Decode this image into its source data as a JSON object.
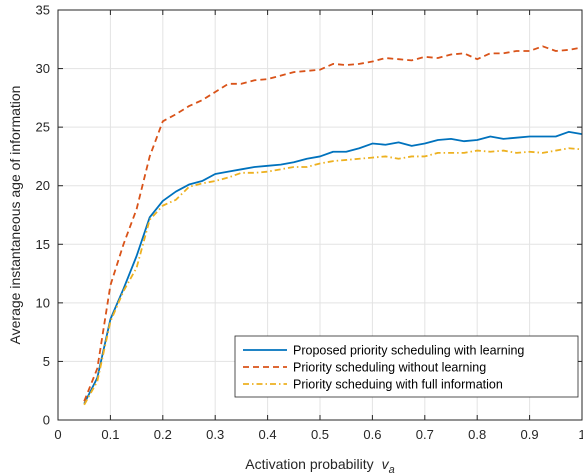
{
  "chart_data": {
    "type": "line",
    "title": "",
    "xlabel": "Activation probability",
    "xlabel_var": "v",
    "xlabel_sub": "a",
    "ylabel": "Average instantaneous age of information",
    "xlim": [
      0,
      1
    ],
    "ylim": [
      0,
      35
    ],
    "xticks": [
      0,
      0.1,
      0.2,
      0.3,
      0.4,
      0.5,
      0.6,
      0.7,
      0.8,
      0.9,
      1
    ],
    "xtick_labels": [
      "0",
      "0.1",
      "0.2",
      "0.3",
      "0.4",
      "0.5",
      "0.6",
      "0.7",
      "0.8",
      "0.9",
      "1"
    ],
    "yticks": [
      0,
      5,
      10,
      15,
      20,
      25,
      30,
      35
    ],
    "ytick_labels": [
      "0",
      "5",
      "10",
      "15",
      "20",
      "25",
      "30",
      "35"
    ],
    "grid": true,
    "legend_position": "bottom-right",
    "x": [
      0.05,
      0.075,
      0.1,
      0.125,
      0.15,
      0.175,
      0.2,
      0.225,
      0.25,
      0.275,
      0.3,
      0.325,
      0.35,
      0.375,
      0.4,
      0.425,
      0.45,
      0.475,
      0.5,
      0.525,
      0.55,
      0.575,
      0.6,
      0.625,
      0.65,
      0.675,
      0.7,
      0.725,
      0.75,
      0.775,
      0.8,
      0.825,
      0.85,
      0.875,
      0.9,
      0.925,
      0.95,
      0.975,
      1.0
    ],
    "series": [
      {
        "name": "Proposed priority scheduling with learning",
        "color": "#0072BD",
        "dash": "solid",
        "values": [
          1.4,
          3.6,
          8.6,
          11.2,
          14.0,
          17.3,
          18.7,
          19.5,
          20.1,
          20.4,
          21.0,
          21.2,
          21.4,
          21.6,
          21.7,
          21.8,
          22.0,
          22.3,
          22.5,
          22.9,
          22.9,
          23.2,
          23.6,
          23.5,
          23.7,
          23.4,
          23.6,
          23.9,
          24.0,
          23.8,
          23.9,
          24.2,
          24.0,
          24.1,
          24.2,
          24.2,
          24.2,
          24.6,
          24.4
        ]
      },
      {
        "name": "Priority scheduling without learning",
        "color": "#D95319",
        "dash": "dashed",
        "values": [
          1.6,
          4.4,
          11.5,
          15.0,
          18.0,
          22.5,
          25.5,
          26.1,
          26.8,
          27.3,
          28.0,
          28.7,
          28.7,
          29.0,
          29.1,
          29.4,
          29.7,
          29.8,
          29.9,
          30.4,
          30.3,
          30.4,
          30.6,
          30.9,
          30.8,
          30.7,
          31.0,
          30.9,
          31.2,
          31.3,
          30.8,
          31.3,
          31.3,
          31.5,
          31.5,
          31.9,
          31.5,
          31.6,
          31.8
        ]
      },
      {
        "name": "Priority scheduing with full information",
        "color": "#EDB120",
        "dash": "dashdot",
        "values": [
          1.3,
          3.3,
          8.4,
          11.0,
          13.0,
          17.1,
          18.3,
          18.8,
          19.9,
          20.2,
          20.4,
          20.7,
          21.1,
          21.1,
          21.2,
          21.4,
          21.6,
          21.6,
          21.9,
          22.1,
          22.2,
          22.3,
          22.4,
          22.5,
          22.3,
          22.5,
          22.5,
          22.8,
          22.8,
          22.8,
          23.0,
          22.9,
          23.0,
          22.8,
          22.9,
          22.8,
          23.0,
          23.2,
          23.1
        ]
      }
    ]
  }
}
